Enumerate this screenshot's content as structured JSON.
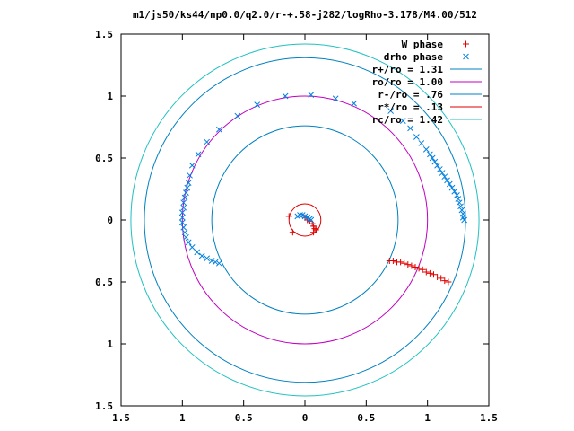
{
  "chart_data": {
    "type": "scatter",
    "title": "m1/js50/ks44/np0.0/q2.0/r-+.58-j282/logRho-3.178/M4.00/512",
    "xlim": [
      -1.5,
      1.5
    ],
    "ylim": [
      -1.5,
      1.5
    ],
    "x_ticks": [
      -1.5,
      -1,
      -0.5,
      0,
      0.5,
      1,
      1.5
    ],
    "x_tick_labels": [
      "1.5",
      "1",
      "0.5",
      "0",
      "0.5",
      "1",
      "1.5"
    ],
    "y_ticks": [
      1.5,
      1,
      0.5,
      0,
      -0.5,
      -1,
      -1.5
    ],
    "y_tick_labels": [
      "1.5",
      "1",
      "0.5",
      "0",
      "0.5",
      "1",
      "1.5"
    ],
    "grid": false,
    "legend_position": "top-right",
    "circles": [
      {
        "name": "r+/ro = 1.31",
        "radius": 1.31,
        "color": "#0080c0"
      },
      {
        "name": "ro/ro = 1.00",
        "radius": 1.0,
        "color": "#c000c0"
      },
      {
        "name": "r-/ro = .76",
        "radius": 0.76,
        "color": "#0080c0"
      },
      {
        "name": "r*/ro = .13",
        "radius": 0.13,
        "color": "#e00000"
      },
      {
        "name": "rc/ro = 1.42",
        "radius": 1.42,
        "color": "#20c0c0"
      }
    ],
    "series": [
      {
        "name": "W phase",
        "marker": "+",
        "color": "#e00000",
        "points": [
          [
            -0.1,
            -0.1
          ],
          [
            0.07,
            -0.1
          ],
          [
            -0.13,
            0.03
          ],
          [
            0.0,
            0.02
          ],
          [
            0.02,
            0.0
          ],
          [
            0.04,
            -0.01
          ],
          [
            0.06,
            -0.03
          ],
          [
            0.07,
            -0.05
          ],
          [
            0.08,
            -0.07
          ],
          [
            0.09,
            -0.08
          ],
          [
            0.69,
            -0.33
          ],
          [
            0.72,
            -0.33
          ],
          [
            0.75,
            -0.34
          ],
          [
            0.78,
            -0.34
          ],
          [
            0.81,
            -0.35
          ],
          [
            0.84,
            -0.36
          ],
          [
            0.87,
            -0.37
          ],
          [
            0.9,
            -0.38
          ],
          [
            0.93,
            -0.39
          ],
          [
            0.96,
            -0.4
          ],
          [
            0.99,
            -0.42
          ],
          [
            1.02,
            -0.43
          ],
          [
            1.05,
            -0.44
          ],
          [
            1.08,
            -0.46
          ],
          [
            1.11,
            -0.47
          ],
          [
            1.14,
            -0.49
          ],
          [
            1.17,
            -0.5
          ]
        ]
      },
      {
        "name": "drho phase",
        "marker": "x",
        "color": "#0080e0",
        "points": [
          [
            -0.16,
            1.0
          ],
          [
            0.05,
            1.01
          ],
          [
            0.25,
            0.98
          ],
          [
            0.4,
            0.94
          ],
          [
            -0.39,
            0.93
          ],
          [
            -0.55,
            0.84
          ],
          [
            -0.7,
            0.73
          ],
          [
            -0.8,
            0.63
          ],
          [
            -0.87,
            0.53
          ],
          [
            -0.92,
            0.44
          ],
          [
            -0.94,
            0.36
          ],
          [
            -0.95,
            0.3
          ],
          [
            -0.96,
            0.26
          ],
          [
            -0.97,
            0.22
          ],
          [
            -0.98,
            0.18
          ],
          [
            -0.99,
            0.14
          ],
          [
            -0.99,
            0.1
          ],
          [
            -1.0,
            0.06
          ],
          [
            -1.0,
            0.02
          ],
          [
            -1.0,
            -0.02
          ],
          [
            -0.99,
            -0.06
          ],
          [
            -0.98,
            -0.1
          ],
          [
            -0.97,
            -0.14
          ],
          [
            -0.95,
            -0.18
          ],
          [
            -0.92,
            -0.22
          ],
          [
            -0.88,
            -0.26
          ],
          [
            -0.84,
            -0.29
          ],
          [
            -0.8,
            -0.31
          ],
          [
            -0.76,
            -0.33
          ],
          [
            -0.73,
            -0.34
          ],
          [
            -0.7,
            -0.35
          ],
          [
            0.7,
            0.88
          ],
          [
            0.8,
            0.8
          ],
          [
            0.86,
            0.74
          ],
          [
            0.91,
            0.67
          ],
          [
            0.95,
            0.62
          ],
          [
            0.99,
            0.57
          ],
          [
            1.02,
            0.53
          ],
          [
            1.04,
            0.5
          ],
          [
            1.06,
            0.47
          ],
          [
            1.08,
            0.44
          ],
          [
            1.1,
            0.41
          ],
          [
            1.12,
            0.38
          ],
          [
            1.14,
            0.35
          ],
          [
            1.16,
            0.32
          ],
          [
            1.18,
            0.29
          ],
          [
            1.2,
            0.26
          ],
          [
            1.22,
            0.23
          ],
          [
            1.24,
            0.2
          ],
          [
            1.25,
            0.17
          ],
          [
            1.26,
            0.14
          ],
          [
            1.27,
            0.11
          ],
          [
            1.28,
            0.08
          ],
          [
            1.29,
            0.05
          ],
          [
            1.29,
            0.02
          ],
          [
            1.3,
            0.0
          ],
          [
            -0.02,
            0.04
          ],
          [
            -0.04,
            0.04
          ],
          [
            0.0,
            0.03
          ],
          [
            0.02,
            0.02
          ],
          [
            0.04,
            0.01
          ],
          [
            0.05,
            0.0
          ],
          [
            -0.06,
            0.03
          ]
        ]
      }
    ]
  }
}
